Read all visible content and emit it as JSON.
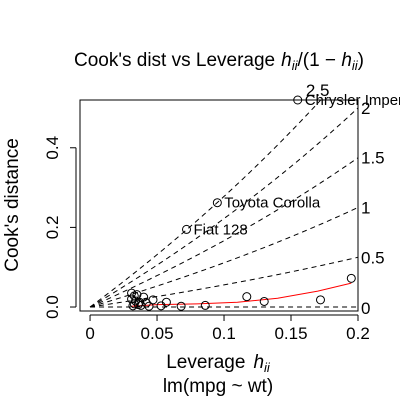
{
  "chart_data": {
    "type": "scatter",
    "title": {
      "prefix": "Cook's dist vs Leverage",
      "h_base": "h",
      "h_sub": "ii",
      "mid": "/(1 − ",
      "h_base2": "h",
      "h_sub2": "ii",
      "suffix": ")"
    },
    "xlabel": {
      "main": "Leverage",
      "h_base": "h",
      "h_sub": "ii"
    },
    "subtitle": "lm(mpg ~ wt)",
    "ylabel": "Cook's distance",
    "xlim": [
      -0.0075,
      0.2
    ],
    "ylim": [
      -0.01,
      0.52
    ],
    "xticks": [
      0,
      0.05,
      0.1,
      0.15,
      0.2
    ],
    "xtick_labels": [
      "0",
      "0.05",
      "0.1",
      "0.15",
      "0.2"
    ],
    "yticks": [
      0.0,
      0.2,
      0.4
    ],
    "ytick_labels": [
      "0.0",
      "0.2",
      "0.4"
    ],
    "points": [
      {
        "x": 0.031,
        "y": 0.035
      },
      {
        "x": 0.033,
        "y": 0.028
      },
      {
        "x": 0.035,
        "y": 0.031
      },
      {
        "x": 0.031,
        "y": 0.02
      },
      {
        "x": 0.034,
        "y": 0.015
      },
      {
        "x": 0.037,
        "y": 0.012
      },
      {
        "x": 0.04,
        "y": 0.025
      },
      {
        "x": 0.033,
        "y": 0.008
      },
      {
        "x": 0.036,
        "y": 0.006
      },
      {
        "x": 0.032,
        "y": 0.003
      },
      {
        "x": 0.038,
        "y": 0.004
      },
      {
        "x": 0.042,
        "y": 0.01
      },
      {
        "x": 0.044,
        "y": 0.002
      },
      {
        "x": 0.047,
        "y": 0.018
      },
      {
        "x": 0.053,
        "y": 0.003
      },
      {
        "x": 0.057,
        "y": 0.012
      },
      {
        "x": 0.068,
        "y": 0.002
      },
      {
        "x": 0.086,
        "y": 0.004
      },
      {
        "x": 0.117,
        "y": 0.026
      },
      {
        "x": 0.13,
        "y": 0.014
      },
      {
        "x": 0.172,
        "y": 0.018
      },
      {
        "x": 0.195,
        "y": 0.072
      },
      {
        "x": 0.072,
        "y": 0.195,
        "label": "Fiat 128"
      },
      {
        "x": 0.095,
        "y": 0.262,
        "label": "Toyota Corolla"
      },
      {
        "x": 0.155,
        "y": 0.535,
        "label": "Chrysler Imperial"
      }
    ],
    "smooth_line": {
      "color": "#ff0000",
      "x": [
        0.031,
        0.05,
        0.08,
        0.11,
        0.14,
        0.17,
        0.195
      ],
      "y": [
        0.002,
        0.006,
        0.008,
        0.012,
        0.022,
        0.04,
        0.06
      ]
    },
    "contours": [
      {
        "label": "0",
        "slope": 0
      },
      {
        "label": "0.5",
        "slope": 0.5
      },
      {
        "label": "1",
        "slope": 1
      },
      {
        "label": "1.5",
        "slope": 1.5
      },
      {
        "label": "2",
        "slope": 2
      },
      {
        "label": "2.5",
        "slope": 2.5
      }
    ],
    "grid": false,
    "legend": "none"
  }
}
